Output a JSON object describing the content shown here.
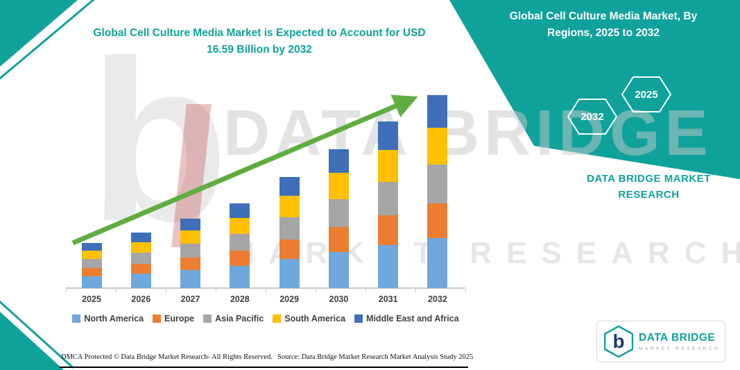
{
  "header": {
    "left_title": [
      "Global Cell Culture Media Market is Expected to Account for USD",
      "16.59 Billion by 2032"
    ],
    "right_title": [
      "Global Cell Culture Media Market, By",
      "Regions, 2025 to 2032"
    ]
  },
  "right_panel": {
    "hexagons": [
      {
        "label": "2032"
      },
      {
        "label": "2025"
      }
    ],
    "brand": [
      "DATA BRIDGE MARKET",
      "RESEARCH"
    ]
  },
  "watermark": {
    "letter": "b",
    "brand": "DATA BRIDGE",
    "sub": "MARKET RESEARCH"
  },
  "logo": {
    "letter": "b",
    "name": "DATA BRIDGE",
    "sub": "MARKET RESEARCH"
  },
  "footer": {
    "dmca": "DMCA Protected © Data Bridge Market Research- All Rights Reserved.",
    "source": "Source: Data Bridge Market Research Market Analysis Study 2025"
  },
  "colors": {
    "teal": "#0FA29B",
    "arrow_green": "#5FAD41",
    "navy": "#1F3A6E",
    "watermark_gray": "#C9C9C9",
    "axis_gray": "#C8C8C8",
    "text_dark": "#3F3F3F",
    "watermark_red": "#C0504D"
  },
  "chart_data": {
    "type": "bar",
    "stacked": true,
    "title": "Global Cell Culture Media Market is Expected to Account for USD 16.59 Billion by 2032",
    "unit": "USD Billion",
    "categories": [
      "2025",
      "2026",
      "2027",
      "2028",
      "2029",
      "2030",
      "2031",
      "2032"
    ],
    "series": [
      {
        "name": "North America",
        "color": "#6FA8DC",
        "values": [
          1.01,
          1.24,
          1.55,
          1.89,
          2.48,
          3.1,
          3.72,
          4.31
        ]
      },
      {
        "name": "Europe",
        "color": "#ED7D31",
        "values": [
          0.7,
          0.86,
          1.07,
          1.31,
          1.72,
          2.15,
          2.58,
          2.99
        ]
      },
      {
        "name": "Asia Pacific",
        "color": "#A6A6A6",
        "values": [
          0.78,
          0.95,
          1.19,
          1.46,
          1.91,
          2.39,
          2.86,
          3.32
        ]
      },
      {
        "name": "South America",
        "color": "#FFC000",
        "values": [
          0.74,
          0.91,
          1.13,
          1.38,
          1.81,
          2.27,
          2.72,
          3.15
        ]
      },
      {
        "name": "Middle East and Africa",
        "color": "#3E6FB8",
        "values": [
          0.66,
          0.81,
          1.01,
          1.24,
          1.62,
          2.03,
          2.43,
          2.82
        ]
      }
    ],
    "totals": [
      3.89,
      4.77,
      5.95,
      7.28,
      9.54,
      11.94,
      14.31,
      16.59
    ],
    "ylim": [
      0,
      17
    ],
    "grid": false,
    "legend_position": "bottom",
    "trend_arrow": true,
    "annotations": [
      "Expected to account for USD 16.59 Billion by 2032"
    ]
  }
}
